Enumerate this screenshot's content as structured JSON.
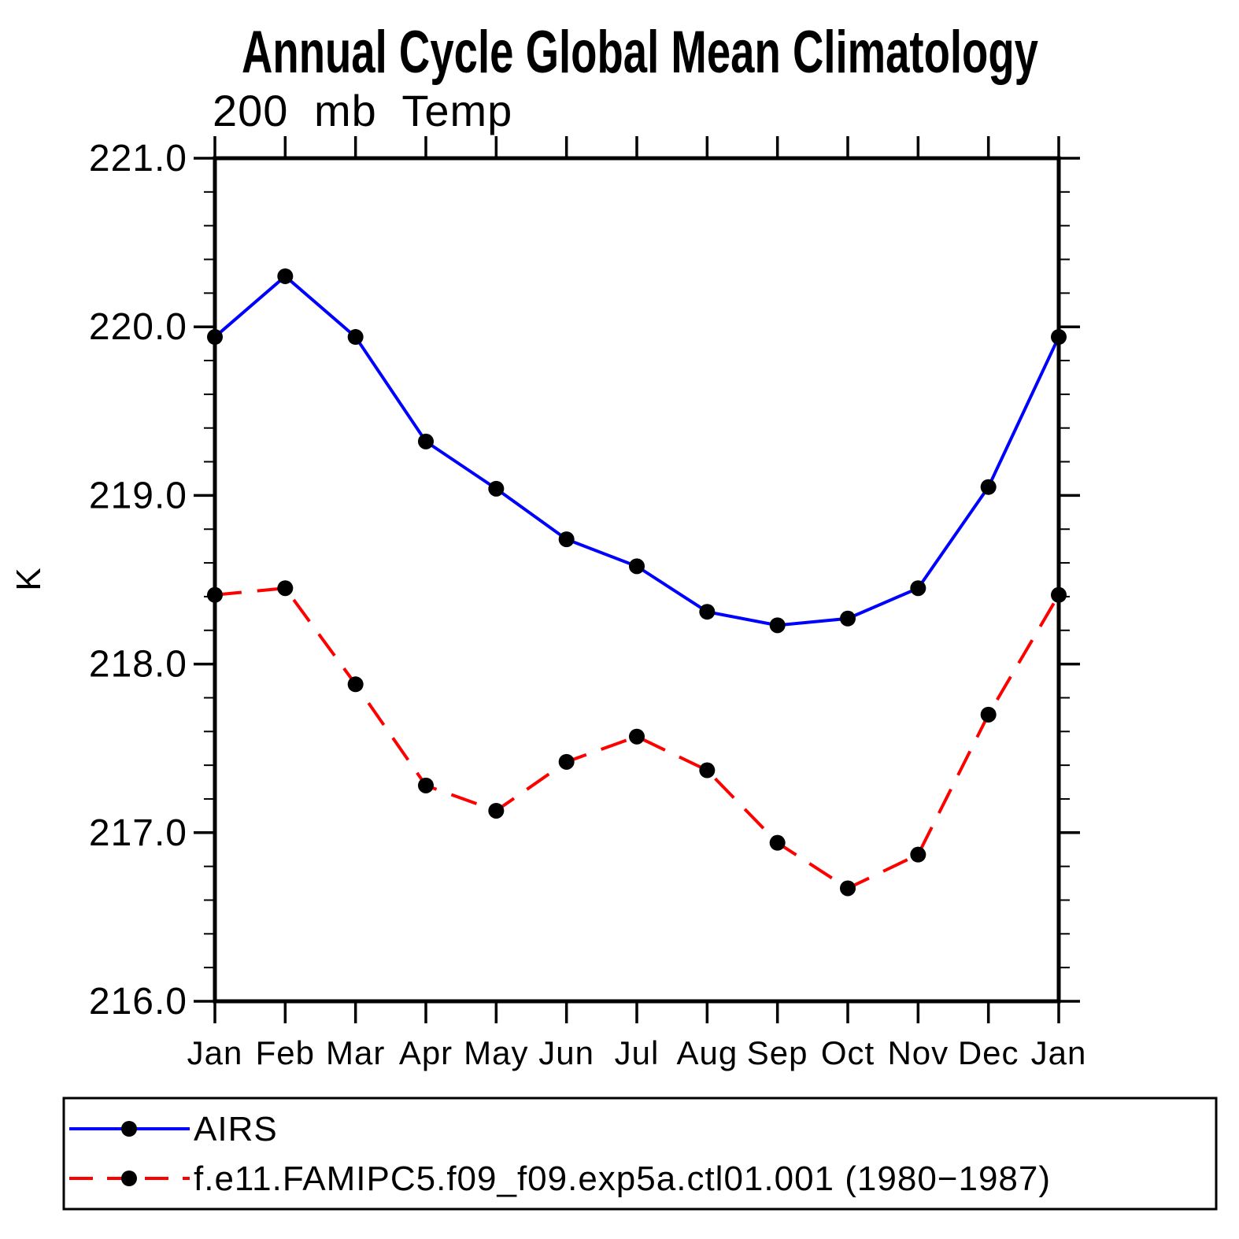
{
  "title": "Annual Cycle Global Mean Climatology",
  "subtitle": "200 mb Temp",
  "ylabel": "K",
  "chart_data": {
    "type": "line",
    "x_categories": [
      "Jan",
      "Feb",
      "Mar",
      "Apr",
      "May",
      "Jun",
      "Jul",
      "Aug",
      "Sep",
      "Oct",
      "Nov",
      "Dec",
      "Jan"
    ],
    "ylim": [
      216.0,
      221.0
    ],
    "ytick_major": 1.0,
    "ytick_minor": 0.2,
    "ytick_labels": [
      "221.0",
      "220.0",
      "219.0",
      "218.0",
      "217.0",
      "216.0"
    ],
    "grid": false,
    "legend_position": "bottom",
    "axis_color": "#000000",
    "marker_color": "#000000",
    "series": [
      {
        "name": "AIRS",
        "color": "#0000ff",
        "style": "solid",
        "marker": "circle",
        "values": [
          219.94,
          220.3,
          219.94,
          219.32,
          219.04,
          218.74,
          218.58,
          218.31,
          218.23,
          218.27,
          218.45,
          219.05,
          219.94
        ]
      },
      {
        "name": "f.e11.FAMIPC5.f09_f09.exp5a.ctl01.001 (1980−1987)",
        "color": "#ff0000",
        "style": "dashed",
        "marker": "circle",
        "values": [
          218.41,
          218.45,
          217.88,
          217.28,
          217.13,
          217.42,
          217.57,
          217.37,
          216.94,
          216.67,
          216.87,
          217.7,
          218.41
        ]
      }
    ]
  }
}
